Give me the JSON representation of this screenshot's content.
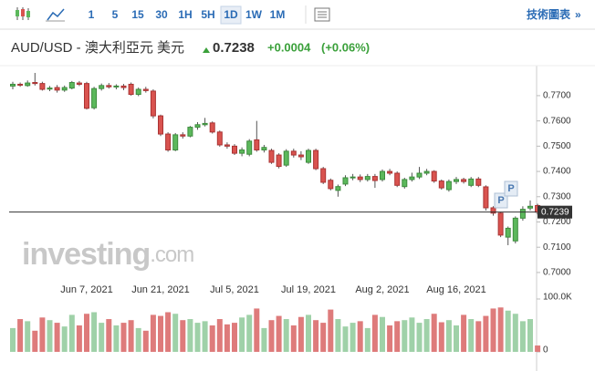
{
  "toolbar": {
    "intervals": [
      "1",
      "5",
      "15",
      "30",
      "1H",
      "5H",
      "1D",
      "1W",
      "1M"
    ],
    "active": "1D",
    "chart_button": "技術圖表"
  },
  "quote": {
    "price": "0.7238",
    "change": "+0.0004",
    "change_pct": "(+0.06%)"
  },
  "watermark": {
    "brand": "investing",
    "suffix": ".com"
  },
  "chart_data": {
    "type": "candlestick",
    "title": "AUD/USD - 澳大利亞元 美元",
    "categories": [
      null,
      null,
      null,
      null,
      null,
      null,
      null,
      null,
      null,
      null,
      "Jun 7, 2021",
      null,
      null,
      null,
      null,
      null,
      null,
      null,
      null,
      null,
      "Jun 21, 2021",
      null,
      null,
      null,
      null,
      null,
      null,
      null,
      null,
      null,
      "Jul 5, 2021",
      null,
      null,
      null,
      null,
      null,
      null,
      null,
      null,
      null,
      "Jul 19, 2021",
      null,
      null,
      null,
      null,
      null,
      null,
      null,
      null,
      null,
      "Aug 2, 2021",
      null,
      null,
      null,
      null,
      null,
      null,
      null,
      null,
      null,
      "Aug 16, 2021",
      null,
      null,
      null,
      null,
      null,
      null,
      null,
      null,
      null,
      null,
      null
    ],
    "open": [
      0.7738,
      0.7745,
      0.774,
      0.7752,
      0.7748,
      0.7726,
      0.7732,
      0.7722,
      0.773,
      0.775,
      0.7748,
      0.7652,
      0.7728,
      0.774,
      0.7735,
      0.7738,
      0.7745,
      0.7705,
      0.7725,
      0.7718,
      0.762,
      0.7548,
      0.7485,
      0.7545,
      0.754,
      0.7575,
      0.7585,
      0.7592,
      0.7556,
      0.7505,
      0.75,
      0.7472,
      0.7468,
      0.7525,
      0.7485,
      0.7483,
      0.7465,
      0.7425,
      0.748,
      0.7465,
      0.7436,
      0.7483,
      0.7411,
      0.7365,
      0.7325,
      0.735,
      0.7375,
      0.7378,
      0.7368,
      0.738,
      0.7368,
      0.74,
      0.7393,
      0.734,
      0.7368,
      0.7378,
      0.7393,
      0.74,
      0.7362,
      0.7328,
      0.736,
      0.7368,
      0.7345,
      0.737,
      0.7339,
      0.7256,
      0.7235,
      0.714,
      0.7125,
      0.7215,
      0.7255,
      0.7265
    ],
    "high": [
      0.7755,
      0.7752,
      0.776,
      0.779,
      0.7755,
      0.7738,
      0.7742,
      0.774,
      0.7758,
      0.7758,
      0.7755,
      0.7735,
      0.7748,
      0.775,
      0.7745,
      0.7746,
      0.7752,
      0.7732,
      0.7735,
      0.7725,
      0.7625,
      0.7555,
      0.7552,
      0.7555,
      0.758,
      0.7595,
      0.7612,
      0.7598,
      0.7562,
      0.7515,
      0.7508,
      0.7495,
      0.7528,
      0.76,
      0.7505,
      0.749,
      0.7472,
      0.7488,
      0.749,
      0.748,
      0.749,
      0.749,
      0.7418,
      0.7372,
      0.7348,
      0.7385,
      0.739,
      0.7388,
      0.739,
      0.739,
      0.7408,
      0.741,
      0.74,
      0.7375,
      0.7395,
      0.7418,
      0.741,
      0.7405,
      0.7368,
      0.7368,
      0.7378,
      0.7375,
      0.7378,
      0.7378,
      0.7345,
      0.7262,
      0.724,
      0.7182,
      0.7222,
      0.7262,
      0.7285,
      0.7272
    ],
    "low": [
      0.7725,
      0.7735,
      0.7735,
      0.774,
      0.772,
      0.7718,
      0.7712,
      0.7715,
      0.7725,
      0.7738,
      0.7645,
      0.7645,
      0.772,
      0.7728,
      0.7725,
      0.7722,
      0.77,
      0.7698,
      0.7712,
      0.761,
      0.754,
      0.7478,
      0.748,
      0.753,
      0.7535,
      0.7565,
      0.7578,
      0.755,
      0.7498,
      0.749,
      0.7465,
      0.746,
      0.746,
      0.7478,
      0.7475,
      0.743,
      0.7412,
      0.7418,
      0.7455,
      0.7445,
      0.743,
      0.7405,
      0.735,
      0.7325,
      0.73,
      0.7342,
      0.7365,
      0.7358,
      0.736,
      0.7335,
      0.736,
      0.7385,
      0.7338,
      0.7332,
      0.736,
      0.737,
      0.7385,
      0.7355,
      0.7328,
      0.732,
      0.735,
      0.7352,
      0.7338,
      0.7338,
      0.7245,
      0.7225,
      0.714,
      0.7108,
      0.7115,
      0.7205,
      0.7245,
      0.723
    ],
    "close": [
      0.7745,
      0.7742,
      0.775,
      0.7748,
      0.7725,
      0.773,
      0.7722,
      0.7732,
      0.7752,
      0.7745,
      0.765,
      0.7728,
      0.774,
      0.7735,
      0.7738,
      0.7732,
      0.7705,
      0.7725,
      0.772,
      0.762,
      0.7548,
      0.7485,
      0.7545,
      0.754,
      0.7575,
      0.7585,
      0.759,
      0.7556,
      0.7505,
      0.75,
      0.7472,
      0.7485,
      0.752,
      0.7485,
      0.7495,
      0.7436,
      0.742,
      0.748,
      0.7465,
      0.7458,
      0.7483,
      0.7411,
      0.7357,
      0.7332,
      0.734,
      0.7375,
      0.7378,
      0.7368,
      0.738,
      0.7364,
      0.74,
      0.7393,
      0.7345,
      0.7368,
      0.7378,
      0.7393,
      0.74,
      0.7362,
      0.7335,
      0.736,
      0.7368,
      0.736,
      0.737,
      0.7345,
      0.7256,
      0.7235,
      0.7148,
      0.7175,
      0.7215,
      0.725,
      0.7262,
      0.7239
    ],
    "volume": [
      45000,
      62000,
      58000,
      40000,
      65000,
      60000,
      55000,
      48000,
      70000,
      50000,
      72000,
      75000,
      55000,
      62000,
      50000,
      55000,
      60000,
      45000,
      40000,
      70000,
      68000,
      75000,
      72000,
      60000,
      62000,
      55000,
      58000,
      50000,
      62000,
      52000,
      55000,
      65000,
      70000,
      82000,
      45000,
      60000,
      68000,
      62000,
      50000,
      66000,
      70000,
      60000,
      55000,
      80000,
      62000,
      48000,
      55000,
      58000,
      45000,
      70000,
      66000,
      50000,
      58000,
      60000,
      65000,
      55000,
      62000,
      72000,
      56000,
      60000,
      50000,
      70000,
      62000,
      58000,
      68000,
      82000,
      84000,
      78000,
      72000,
      58000,
      62000,
      12000
    ],
    "up_color": "#5cb85c",
    "down_color": "#d9534f",
    "ylim": [
      0.696,
      0.7808
    ],
    "yticks": [
      {
        "value": 0.7,
        "label": "0.7000"
      },
      {
        "value": 0.71,
        "label": "0.7100"
      },
      {
        "value": 0.72,
        "label": "0.7200"
      },
      {
        "value": 0.73,
        "label": "0.7300"
      },
      {
        "value": 0.74,
        "label": "0.7400"
      },
      {
        "value": 0.75,
        "label": "0.7500"
      },
      {
        "value": 0.76,
        "label": "0.7600"
      },
      {
        "value": 0.77,
        "label": "0.7700"
      }
    ],
    "y2lim": [
      0,
      100000
    ],
    "y2ticks": [
      0,
      {
        "value": 100000,
        "label": "100.0K"
      }
    ],
    "last_price": {
      "value": 0.7239,
      "label": "0.7239"
    },
    "markers": [
      "P",
      "P"
    ]
  }
}
